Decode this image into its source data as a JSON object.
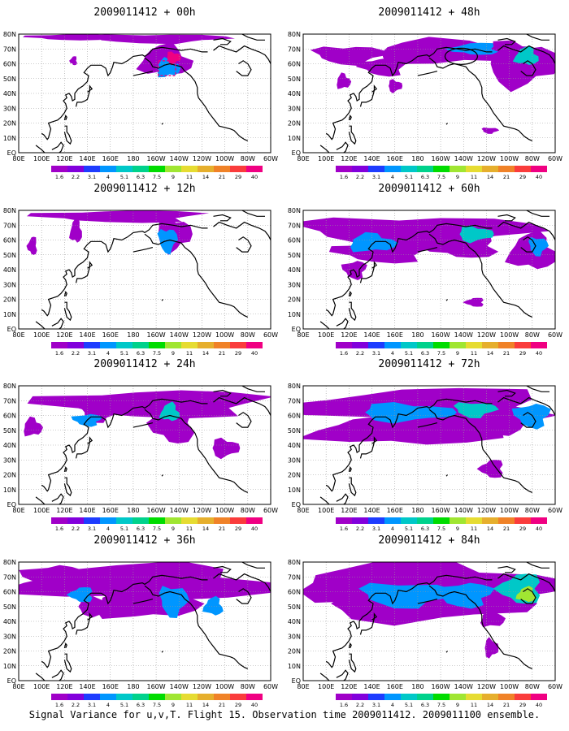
{
  "panels": [
    {
      "title": "2009011412 + 00h"
    },
    {
      "title": "2009011412 + 48h"
    },
    {
      "title": "2009011412 + 12h"
    },
    {
      "title": "2009011412 + 60h"
    },
    {
      "title": "2009011412 + 24h"
    },
    {
      "title": "2009011412 + 72h"
    },
    {
      "title": "2009011412 + 36h"
    },
    {
      "title": "2009011412 + 84h"
    }
  ],
  "lat_labels": [
    "80N",
    "70N",
    "60N",
    "50N",
    "40N",
    "30N",
    "20N",
    "10N",
    "EQ"
  ],
  "lon_labels": [
    "80E",
    "100E",
    "120E",
    "140E",
    "160E",
    "180",
    "160W",
    "140W",
    "120W",
    "100W",
    "80W",
    "60W"
  ],
  "colorbar": {
    "labels": [
      "1.6",
      "2.2",
      "3.1",
      "4",
      "5.1",
      "6.3",
      "7.5",
      "9",
      "11",
      "14",
      "21",
      "29",
      "40"
    ],
    "colors": [
      "#a000c8",
      "#8200dc",
      "#1e3cff",
      "#0096ff",
      "#00c8c8",
      "#00d28c",
      "#00dc00",
      "#a0e632",
      "#e6dc32",
      "#e6af2d",
      "#f08228",
      "#fa3c3c",
      "#f00082"
    ]
  },
  "caption": "Signal Variance for u,v,T. Flight 15. Observation time 2009011412. 2009011100 ensemble."
}
